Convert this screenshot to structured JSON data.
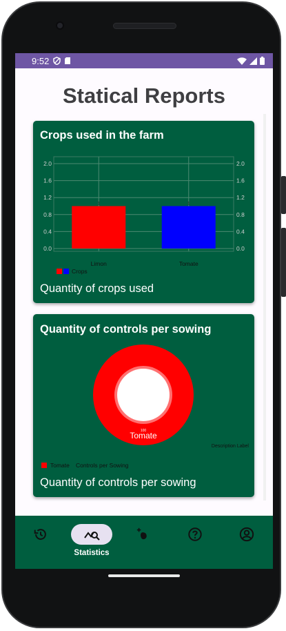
{
  "status_bar": {
    "time": "9:52"
  },
  "page": {
    "title": "Statical Reports"
  },
  "crops_card": {
    "title": "Crops used in the farm",
    "footer": "Quantity of crops used",
    "legend_label": "Crops",
    "chart_data": {
      "type": "bar",
      "categories": [
        "Limon",
        "Tomate"
      ],
      "series": [
        {
          "name": "Crops",
          "values": [
            1,
            1
          ]
        }
      ],
      "colors": [
        "#ff0000",
        "#0000ff"
      ],
      "y_ticks": [
        "2.0",
        "1.6",
        "1.2",
        "0.8",
        "0.4",
        "0.0"
      ],
      "ylim": [
        0,
        2.0
      ],
      "value_labels": [
        "1",
        "1"
      ],
      "grid": true,
      "legend_position": "bottom-left"
    }
  },
  "controls_card": {
    "title": "Quantity of controls per sowing",
    "footer": "Quantity of controls per sowing",
    "slice_label": "Tomate",
    "slice_value": "100",
    "description_label": "Description Label",
    "legend_label": "Tomate",
    "legend_description": "Controls per Sowing",
    "chart_data": {
      "type": "pie",
      "categories": [
        "Tomate"
      ],
      "values": [
        100
      ],
      "colors": [
        "#ff0000"
      ],
      "legend_position": "bottom-left"
    }
  },
  "bottom_nav": {
    "items": [
      {
        "icon": "history-icon",
        "label": ""
      },
      {
        "icon": "statistics-icon",
        "label": "Statistics",
        "active": true
      },
      {
        "icon": "add-crop-icon",
        "label": ""
      },
      {
        "icon": "help-icon",
        "label": ""
      },
      {
        "icon": "account-icon",
        "label": ""
      }
    ]
  },
  "colors": {
    "card": "#005e3f",
    "status_bar": "#6e56a4",
    "active_pill": "#e7e1f1"
  }
}
